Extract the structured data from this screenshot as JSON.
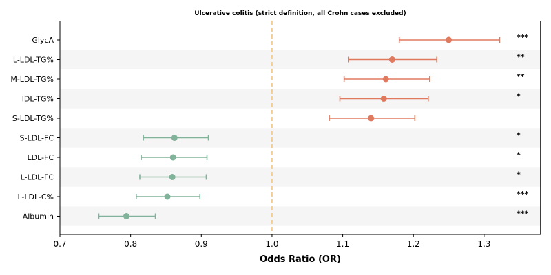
{
  "chart_data": {
    "type": "forest",
    "title": "Ulcerative colitis (strict definition, all Crohn cases excluded)",
    "xlabel": "Odds Ratio (OR)",
    "xlim": [
      0.7,
      1.38
    ],
    "xticks": [
      0.7,
      0.8,
      0.9,
      1.0,
      1.1,
      1.2,
      1.3
    ],
    "reference_line": 1.0,
    "colors": {
      "increase": "#e07a5f",
      "decrease": "#81b29a",
      "reference": "#f2cc8f",
      "band": "#f5f5f5"
    },
    "rows": [
      {
        "label": "GlycA",
        "or": 1.25,
        "lower": 1.18,
        "upper": 1.322,
        "sig": "***"
      },
      {
        "label": "L-LDL-TG%",
        "or": 1.17,
        "lower": 1.108,
        "upper": 1.233,
        "sig": "**"
      },
      {
        "label": "M-LDL-TG%",
        "or": 1.161,
        "lower": 1.102,
        "upper": 1.223,
        "sig": "**"
      },
      {
        "label": "IDL-TG%",
        "or": 1.158,
        "lower": 1.096,
        "upper": 1.221,
        "sig": "*"
      },
      {
        "label": "S-LDL-TG%",
        "or": 1.14,
        "lower": 1.081,
        "upper": 1.202,
        "sig": ""
      },
      {
        "label": "S-LDL-FC",
        "or": 0.862,
        "lower": 0.818,
        "upper": 0.91,
        "sig": "*"
      },
      {
        "label": "LDL-FC",
        "or": 0.86,
        "lower": 0.815,
        "upper": 0.908,
        "sig": "*"
      },
      {
        "label": "L-LDL-FC",
        "or": 0.859,
        "lower": 0.813,
        "upper": 0.907,
        "sig": "*"
      },
      {
        "label": "L-LDL-C%",
        "or": 0.852,
        "lower": 0.808,
        "upper": 0.898,
        "sig": "***"
      },
      {
        "label": "Albumin",
        "or": 0.794,
        "lower": 0.755,
        "upper": 0.835,
        "sig": "***"
      }
    ]
  }
}
